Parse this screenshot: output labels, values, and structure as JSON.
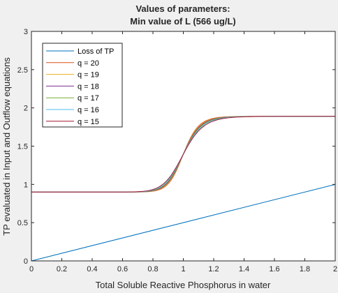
{
  "chart_data": {
    "type": "line",
    "title": [
      "Values of parameters:",
      "Min value of L (566 ug/L)"
    ],
    "xlabel": "Total Soluble Reactive Phosphorus in water",
    "ylabel": "TP evaluated in Input and Outflow equations",
    "xlim": [
      0,
      2
    ],
    "ylim": [
      0,
      3
    ],
    "xticks": [
      "0",
      "0.2",
      "0.4",
      "0.6",
      "0.8",
      "1",
      "1.2",
      "1.4",
      "1.6",
      "1.8",
      "2"
    ],
    "yticks": [
      "0",
      "0.5",
      "1",
      "1.5",
      "2",
      "2.5",
      "3"
    ],
    "grid": false,
    "legend_position": "top-left",
    "series": [
      {
        "name": "Loss of TP",
        "color": "#0072BD",
        "x": [
          0,
          2
        ],
        "y": [
          0,
          1
        ]
      },
      {
        "name": "q = 20",
        "color": "#D95319",
        "lower": 0.9,
        "upper": 1.89,
        "midpoint": 1.0,
        "q": 20
      },
      {
        "name": "q = 19",
        "color": "#EDB120",
        "lower": 0.9,
        "upper": 1.89,
        "midpoint": 1.0,
        "q": 19
      },
      {
        "name": "q = 18",
        "color": "#7E2F8E",
        "lower": 0.9,
        "upper": 1.89,
        "midpoint": 1.0,
        "q": 18
      },
      {
        "name": "q = 17",
        "color": "#77AC30",
        "lower": 0.9,
        "upper": 1.89,
        "midpoint": 1.0,
        "q": 17
      },
      {
        "name": "q = 16",
        "color": "#4DBEEE",
        "lower": 0.9,
        "upper": 1.89,
        "midpoint": 1.0,
        "q": 16
      },
      {
        "name": "q = 15",
        "color": "#A2142F",
        "lower": 0.9,
        "upper": 1.89,
        "midpoint": 1.0,
        "q": 15
      }
    ]
  }
}
